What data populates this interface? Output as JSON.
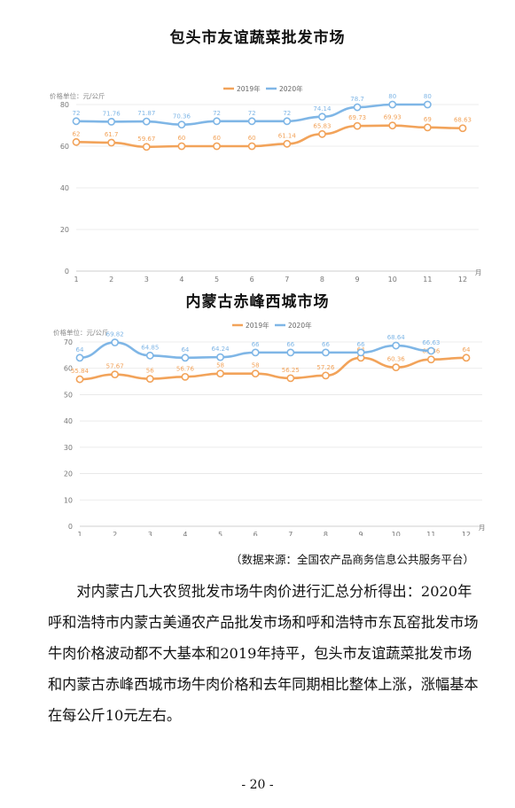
{
  "chart_data": [
    {
      "type": "line",
      "title": "包头市友谊蔬菜批发市场",
      "ylabel": "价格单位：元/公斤",
      "xlabel": "月",
      "categories": [
        1,
        2,
        3,
        4,
        5,
        6,
        7,
        8,
        9,
        10,
        11,
        12
      ],
      "ylim": [
        0,
        80
      ],
      "yticks": [
        0,
        20,
        40,
        60,
        80
      ],
      "grid": true,
      "legend_position": "top",
      "series": [
        {
          "name": "2019年",
          "color": "#f2a35a",
          "values": [
            62,
            61.7,
            59.67,
            60,
            60,
            60,
            61.14,
            65.83,
            69.73,
            69.93,
            69,
            68.63
          ]
        },
        {
          "name": "2020年",
          "color": "#7fb6e6",
          "values": [
            72,
            71.76,
            71.87,
            70.36,
            72,
            72,
            72,
            74.14,
            78.7,
            80,
            80,
            null
          ]
        }
      ]
    },
    {
      "type": "line",
      "title": "内蒙古赤峰西城市场",
      "ylabel": "价格单位：元/公斤",
      "xlabel": "月",
      "categories": [
        1,
        2,
        3,
        4,
        5,
        6,
        7,
        8,
        9,
        10,
        11,
        12
      ],
      "ylim": [
        0,
        70
      ],
      "yticks": [
        0,
        10,
        20,
        30,
        40,
        50,
        60,
        70
      ],
      "grid": true,
      "legend_position": "top",
      "series": [
        {
          "name": "2019年",
          "color": "#f2a35a",
          "values": [
            55.84,
            57.67,
            56,
            56.76,
            58,
            58,
            56.25,
            57.26,
            64,
            60.36,
            63.36,
            64
          ]
        },
        {
          "name": "2020年",
          "color": "#7fb6e6",
          "values": [
            64,
            69.82,
            64.85,
            64,
            64.24,
            66,
            66,
            66,
            66,
            68.64,
            66.63,
            null
          ]
        }
      ]
    }
  ],
  "source_note": "（数据来源：全国农产品商务信息公共服务平台）",
  "paragraph": "对内蒙古几大农贸批发市场牛肉价进行汇总分析得出：2020年呼和浩特市内蒙古美通农产品批发市场和呼和浩特市东瓦窑批发市场牛肉价格波动都不大基本和2019年持平，包头市友谊蔬菜批发市场和内蒙古赤峰西城市场牛肉价格和去年同期相比整体上涨，涨幅基本在每公斤10元左右。",
  "page_number": "- 20 -"
}
